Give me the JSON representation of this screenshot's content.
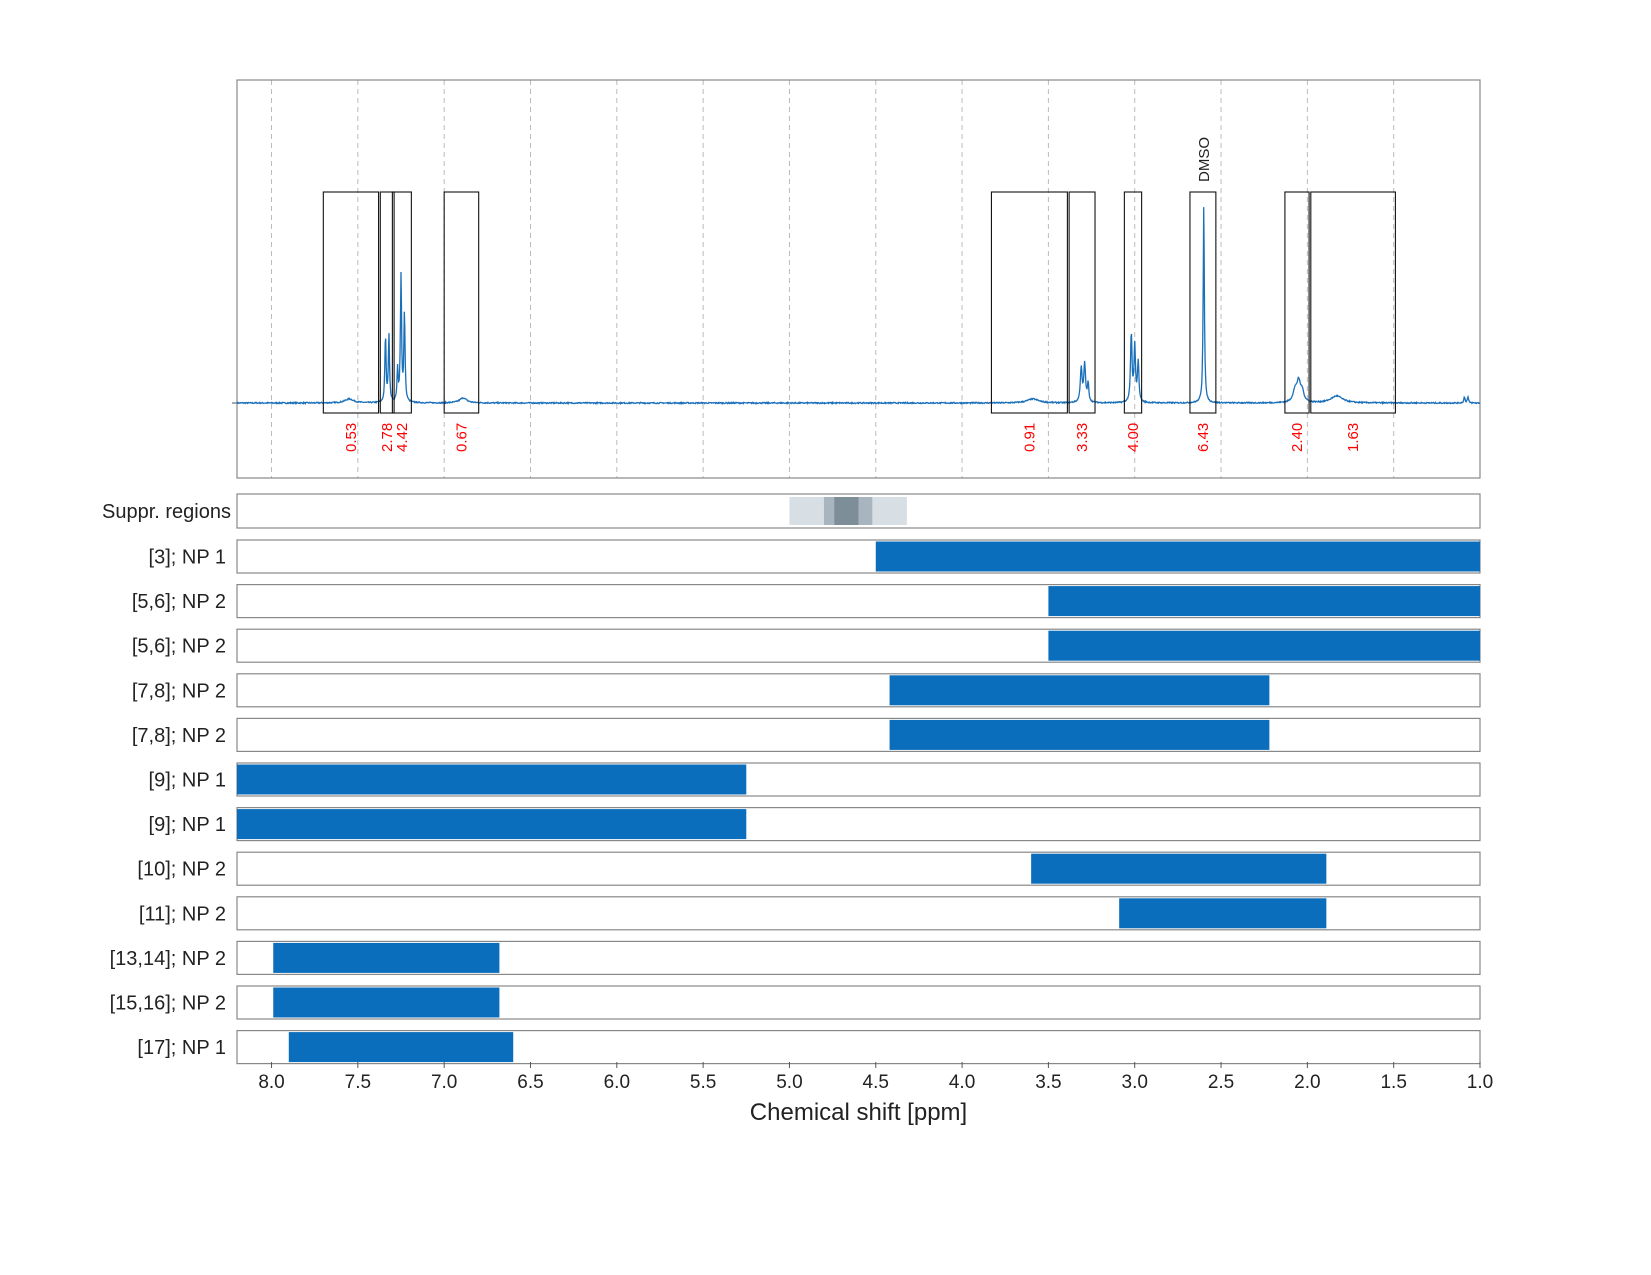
{
  "chart_data": {
    "type": "nmr-spectrum-with-range-bars",
    "xlabel": "Chemical shift [ppm]",
    "xlim": [
      8.2,
      1.0
    ],
    "x_reversed": true,
    "xticks": [
      "8.0",
      "7.5",
      "7.0",
      "6.5",
      "6.0",
      "5.5",
      "5.0",
      "4.5",
      "4.0",
      "3.5",
      "3.0",
      "2.5",
      "2.0",
      "1.5",
      "1.0"
    ],
    "grid": "vertical dashed",
    "colors": {
      "spectrum": "#1a6fb9",
      "bar": "#0a6ebd",
      "integral": "#ff0000",
      "box": "#111111",
      "suppression": "#7e8e99"
    },
    "spectrum": {
      "peaks": [
        {
          "ppm": 7.55,
          "height": 0.02,
          "width": 0.03
        },
        {
          "ppm": 7.34,
          "height": 0.33,
          "width": 0.004
        },
        {
          "ppm": 7.32,
          "height": 0.34,
          "width": 0.004
        },
        {
          "ppm": 7.27,
          "height": 0.16,
          "width": 0.004
        },
        {
          "ppm": 7.25,
          "height": 0.63,
          "width": 0.004
        },
        {
          "ppm": 7.23,
          "height": 0.44,
          "width": 0.004
        },
        {
          "ppm": 6.89,
          "height": 0.025,
          "width": 0.025
        },
        {
          "ppm": 3.59,
          "height": 0.02,
          "width": 0.04
        },
        {
          "ppm": 3.31,
          "height": 0.17,
          "width": 0.006
        },
        {
          "ppm": 3.29,
          "height": 0.19,
          "width": 0.006
        },
        {
          "ppm": 3.27,
          "height": 0.09,
          "width": 0.005
        },
        {
          "ppm": 3.02,
          "height": 0.34,
          "width": 0.005
        },
        {
          "ppm": 3.0,
          "height": 0.28,
          "width": 0.005
        },
        {
          "ppm": 2.98,
          "height": 0.2,
          "width": 0.005
        },
        {
          "ppm": 2.6,
          "height": 1.0,
          "width": 0.004
        },
        {
          "ppm": 2.07,
          "height": 0.06,
          "width": 0.015
        },
        {
          "ppm": 2.05,
          "height": 0.09,
          "width": 0.012
        },
        {
          "ppm": 2.03,
          "height": 0.05,
          "width": 0.012
        },
        {
          "ppm": 1.83,
          "height": 0.035,
          "width": 0.04
        },
        {
          "ppm": 1.09,
          "height": 0.03,
          "width": 0.004
        },
        {
          "ppm": 1.07,
          "height": 0.03,
          "width": 0.004
        }
      ],
      "integrals": [
        {
          "from": 7.7,
          "to": 7.38,
          "value": "0.53"
        },
        {
          "from": 7.37,
          "to": 7.29,
          "value": "2.78"
        },
        {
          "from": 7.3,
          "to": 7.19,
          "value": "4.42"
        },
        {
          "from": 7.0,
          "to": 6.8,
          "value": "0.67"
        },
        {
          "from": 3.83,
          "to": 3.39,
          "value": "0.91"
        },
        {
          "from": 3.38,
          "to": 3.23,
          "value": "3.33"
        },
        {
          "from": 3.06,
          "to": 2.96,
          "value": "4.00"
        },
        {
          "from": 2.68,
          "to": 2.53,
          "value": "6.43"
        },
        {
          "from": 2.13,
          "to": 1.99,
          "value": "2.40"
        },
        {
          "from": 1.98,
          "to": 1.49,
          "value": "1.63"
        }
      ],
      "annotations": [
        {
          "ppm": 2.6,
          "text": "DMSO"
        }
      ]
    },
    "suppression": {
      "label": "Suppr. regions",
      "bands": [
        {
          "from": 5.0,
          "to": 4.32,
          "level": 1
        },
        {
          "from": 4.8,
          "to": 4.52,
          "level": 2
        },
        {
          "from": 4.74,
          "to": 4.6,
          "level": 3
        }
      ]
    },
    "rows": [
      {
        "label": "[3]; NP 1",
        "from": 4.5,
        "to": 1.0
      },
      {
        "label": "[5,6]; NP 2",
        "from": 3.5,
        "to": 1.0
      },
      {
        "label": "[5,6]; NP 2",
        "from": 3.5,
        "to": 1.0
      },
      {
        "label": "[7,8]; NP 2",
        "from": 4.42,
        "to": 2.22
      },
      {
        "label": "[7,8]; NP 2",
        "from": 4.42,
        "to": 2.22
      },
      {
        "label": "[9]; NP 1",
        "from": 8.2,
        "to": 5.25
      },
      {
        "label": "[9]; NP 1",
        "from": 8.2,
        "to": 5.25
      },
      {
        "label": "[10]; NP 2",
        "from": 3.6,
        "to": 1.89
      },
      {
        "label": "[11]; NP 2",
        "from": 3.09,
        "to": 1.89
      },
      {
        "label": "[13,14]; NP 2",
        "from": 7.99,
        "to": 6.68
      },
      {
        "label": "[15,16]; NP 2",
        "from": 7.99,
        "to": 6.68
      },
      {
        "label": "[17]; NP 1",
        "from": 7.9,
        "to": 6.6
      }
    ]
  }
}
